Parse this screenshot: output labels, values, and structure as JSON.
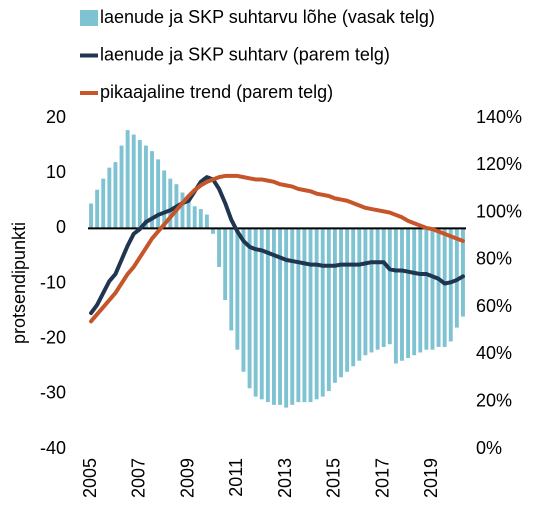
{
  "chart_data": {
    "type": "bar_line",
    "y_axis_label": "protsendipunkti",
    "categories": [
      "2005",
      null,
      null,
      null,
      null,
      null,
      null,
      null,
      "2007",
      null,
      null,
      null,
      null,
      null,
      null,
      null,
      "2009",
      null,
      null,
      null,
      null,
      null,
      null,
      null,
      "2011",
      null,
      null,
      null,
      null,
      null,
      null,
      null,
      "2013",
      null,
      null,
      null,
      null,
      null,
      null,
      null,
      "2015",
      null,
      null,
      null,
      null,
      null,
      null,
      null,
      "2017",
      null,
      null,
      null,
      null,
      null,
      null,
      null,
      "2019",
      null,
      null,
      null,
      null,
      null
    ],
    "ylim": [
      -40,
      20
    ],
    "yticks": [
      -40,
      -30,
      -20,
      -10,
      0,
      10,
      20
    ],
    "y2lim": [
      0,
      140
    ],
    "y2ticks": [
      {
        "value": 0,
        "label": "0%"
      },
      {
        "value": 20,
        "label": "20%"
      },
      {
        "value": 40,
        "label": "40%"
      },
      {
        "value": 60,
        "label": "60%"
      },
      {
        "value": 80,
        "label": "80%"
      },
      {
        "value": 100,
        "label": "100%"
      },
      {
        "value": 120,
        "label": "120%"
      },
      {
        "value": 140,
        "label": "140%"
      }
    ],
    "grid": false,
    "legend": "top",
    "series": [
      {
        "name": "laenude ja SKP suhtarvu lõhe (vasak telg)",
        "type": "bar",
        "axis": "y",
        "color": "#7fc3d3",
        "values": [
          4.5,
          7,
          9,
          11,
          12,
          15,
          17.8,
          17,
          16,
          15,
          14,
          12.5,
          10.5,
          9,
          8,
          6.5,
          5,
          4,
          3.5,
          2.5,
          -1,
          -7,
          -13,
          -18.5,
          -22,
          -26,
          -29,
          -30.5,
          -31,
          -31.5,
          -32,
          -32,
          -32.5,
          -32,
          -31.5,
          -31.5,
          -31.5,
          -31,
          -30.5,
          -29.5,
          -28,
          -27,
          -26,
          -25,
          -24,
          -23,
          -22.5,
          -22,
          -21.5,
          -21,
          -24.5,
          -24,
          -23.5,
          -23,
          -22.5,
          -22,
          -22,
          -21.5,
          -21.5,
          -20.5,
          -18,
          -16
        ]
      },
      {
        "name": "laenude ja SKP suhtarv (parem telg)",
        "type": "line",
        "axis": "y2",
        "color": "#1f3550",
        "values": [
          57.5,
          61,
          66,
          71,
          74,
          80,
          86,
          91,
          93,
          96,
          97.5,
          99,
          100,
          101,
          102.5,
          104,
          105,
          109,
          113,
          115,
          114,
          110,
          104,
          97,
          92,
          88,
          85.5,
          84.5,
          84,
          83,
          82,
          81,
          80,
          79.5,
          79,
          78.5,
          78,
          78,
          77.5,
          77.5,
          77.5,
          78,
          78,
          78,
          78,
          78.5,
          79,
          79,
          79,
          76,
          75.5,
          75.5,
          75,
          74.5,
          74,
          74,
          73,
          72,
          70,
          70.5,
          71.5,
          73
        ]
      },
      {
        "name": "pikaajaline trend (parem telg)",
        "type": "line",
        "axis": "y2",
        "color": "#c6562a",
        "values": [
          54,
          57,
          60,
          63,
          66,
          70,
          74,
          77,
          81,
          85,
          89,
          92,
          95,
          98,
          101,
          104,
          107,
          109.5,
          111.5,
          113,
          114,
          115,
          115.5,
          115.5,
          115.5,
          115,
          114.5,
          114,
          114,
          113.5,
          113,
          112,
          111.5,
          111,
          110,
          109.5,
          109,
          108,
          107.5,
          107,
          106,
          105.5,
          105,
          104,
          103,
          102,
          101.5,
          101,
          100.5,
          100,
          99,
          98,
          96.5,
          95.5,
          94.5,
          93.5,
          93,
          92,
          91,
          90,
          89,
          88
        ]
      }
    ]
  }
}
